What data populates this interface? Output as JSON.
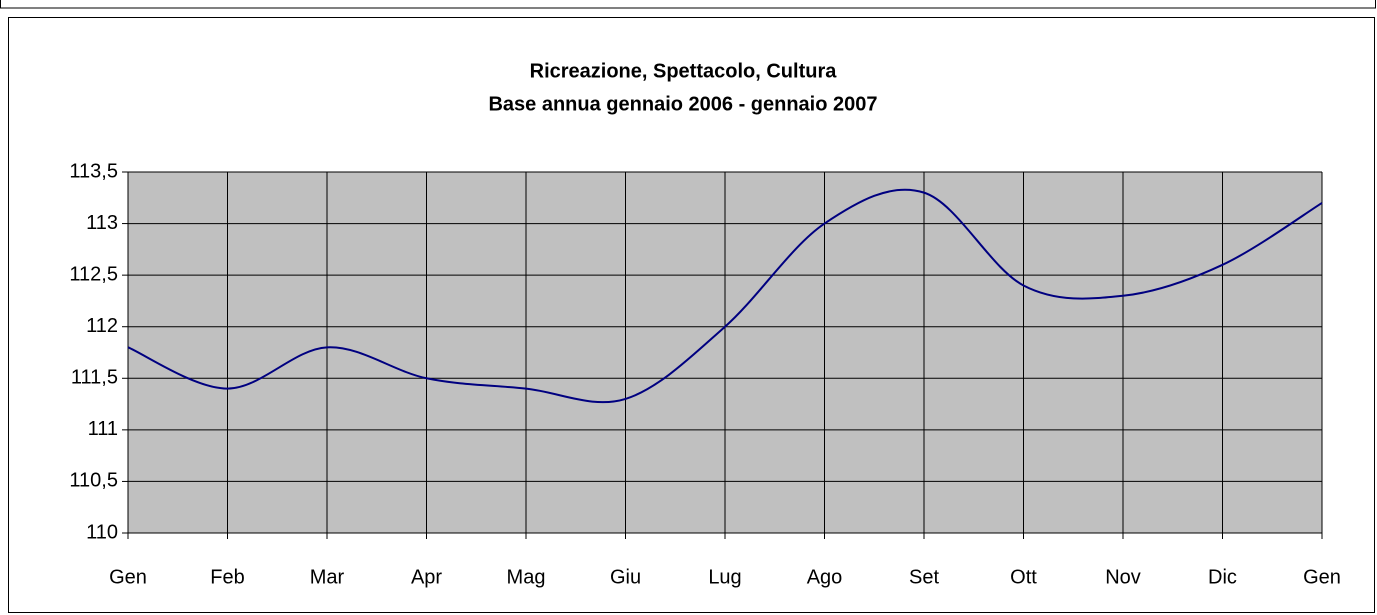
{
  "chart_data": {
    "type": "line",
    "title": "Ricreazione, Spettacolo, Cultura",
    "subtitle": "Base annua gennaio 2006 - gennaio 2007",
    "categories": [
      "Gen",
      "Feb",
      "Mar",
      "Apr",
      "Mag",
      "Giu",
      "Lug",
      "Ago",
      "Set",
      "Ott",
      "Nov",
      "Dic",
      "Gen"
    ],
    "series": [
      {
        "color": "#000080",
        "values": [
          111.8,
          111.4,
          111.8,
          111.5,
          111.4,
          111.3,
          112.0,
          113.0,
          113.3,
          112.4,
          112.3,
          112.6,
          113.2
        ]
      }
    ],
    "ylim": [
      110,
      113.5
    ],
    "yticks": [
      110,
      {
        "value": 110.5,
        "label": "110,5"
      },
      111,
      {
        "value": 111.5,
        "label": "111,5"
      },
      112,
      {
        "value": 112.5,
        "label": "112,5"
      },
      113,
      {
        "value": 113.5,
        "label": "113,5"
      }
    ],
    "grid": true,
    "smooth": true,
    "plot_background": "#c0c0c0"
  }
}
